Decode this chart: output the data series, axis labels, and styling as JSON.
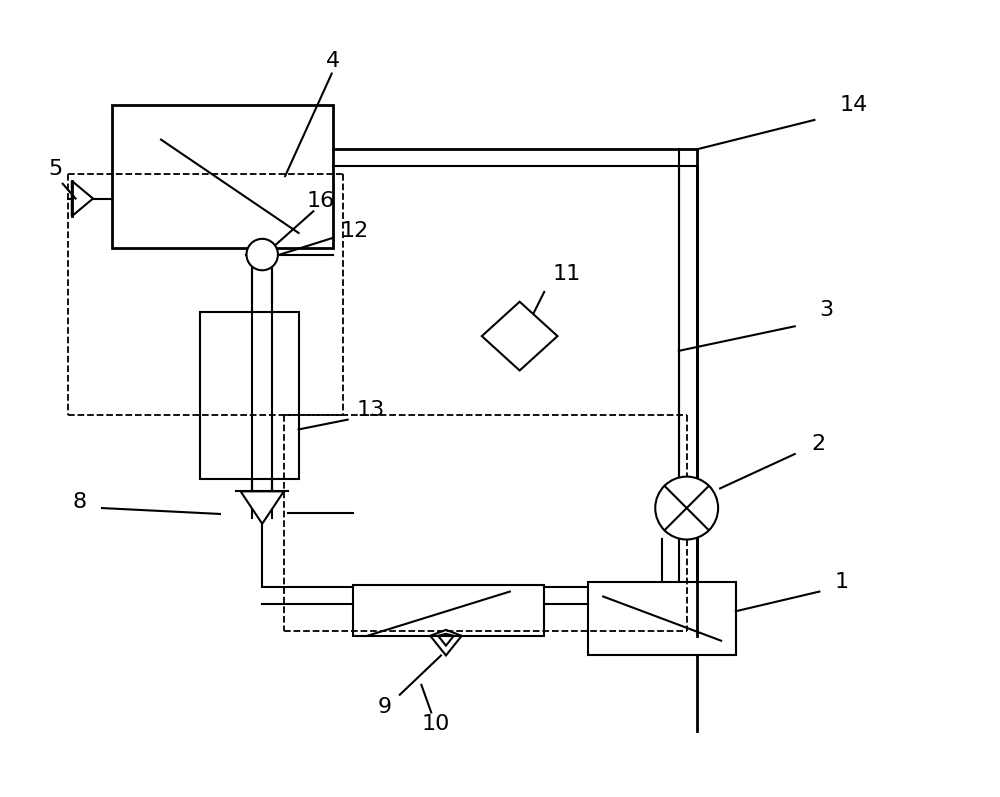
{
  "bg_color": "#ffffff",
  "line_color": "#000000",
  "lw": 1.5,
  "lw_thick": 2.0,
  "lw_dash": 1.3,
  "fig_width": 10.0,
  "fig_height": 7.97
}
